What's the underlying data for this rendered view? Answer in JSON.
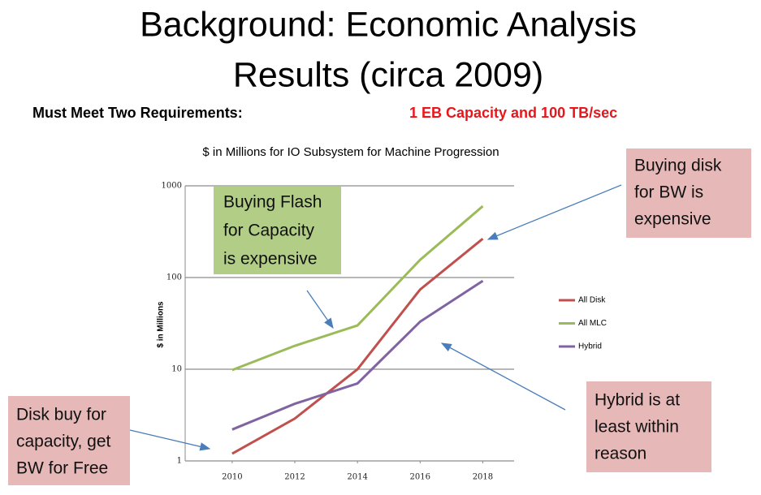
{
  "slide": {
    "title_lines": [
      "Background: Economic Analysis",
      "Results (circa 2009)"
    ],
    "requirements_label": "Must Meet Two Requirements:",
    "requirements_value": "1 EB Capacity and 100 TB/sec",
    "callouts": [
      {
        "lines": [
          "Buying Flash",
          "for Capacity",
          "is expensive"
        ]
      },
      {
        "lines": [
          "Buying disk",
          "for BW is",
          "expensive"
        ]
      },
      {
        "lines": [
          "Hybrid is at",
          "least within",
          "reason"
        ]
      },
      {
        "lines": [
          "Disk buy for",
          "capacity, get",
          "BW for Free"
        ]
      }
    ]
  },
  "chart_data": {
    "type": "line",
    "title": "$ in Millions for IO Subsystem for Machine Progression",
    "y_label": "$ in Millions",
    "x": [
      2010,
      2012,
      2014,
      2016,
      2018
    ],
    "xlim": [
      2008.5,
      2019
    ],
    "xticks": [
      2010,
      2012,
      2014,
      2016,
      2018
    ],
    "ylim": [
      1,
      1000
    ],
    "yticks": [
      1,
      10,
      100,
      1000
    ],
    "log_y": true,
    "grid": true,
    "legend": "right",
    "series": [
      {
        "name": "All Disk",
        "color": "#c0504d",
        "values": [
          1.2,
          2.9,
          10,
          74,
          265
        ]
      },
      {
        "name": "All MLC",
        "color": "#9bbb59",
        "values": [
          9.8,
          18,
          30,
          156,
          600
        ]
      },
      {
        "name": "Hybrid",
        "color": "#8064a2",
        "values": [
          2.2,
          4.2,
          7,
          33,
          92
        ]
      }
    ]
  }
}
